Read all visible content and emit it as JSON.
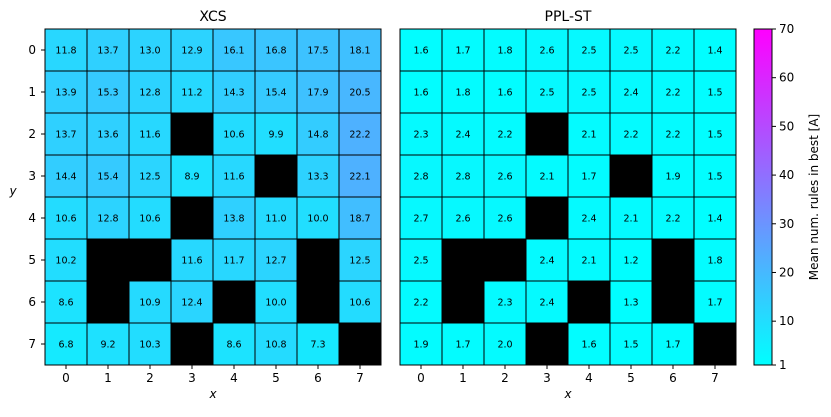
{
  "chart_data": [
    {
      "type": "heatmap",
      "title": "XCS",
      "xlabel": "x",
      "ylabel": "y",
      "x_ticks": [
        "0",
        "1",
        "2",
        "3",
        "4",
        "5",
        "6",
        "7"
      ],
      "y_ticks": [
        "0",
        "1",
        "2",
        "3",
        "4",
        "5",
        "6",
        "7"
      ],
      "blocked_color": "#000000",
      "values": [
        [
          11.8,
          13.7,
          13.0,
          12.9,
          16.1,
          16.8,
          17.5,
          18.1
        ],
        [
          13.9,
          15.3,
          12.8,
          11.2,
          14.3,
          15.4,
          17.9,
          20.5
        ],
        [
          13.7,
          13.6,
          11.6,
          null,
          10.6,
          9.9,
          14.8,
          22.2
        ],
        [
          14.4,
          15.4,
          12.5,
          8.9,
          11.6,
          null,
          13.3,
          22.1
        ],
        [
          10.6,
          12.8,
          10.6,
          null,
          13.8,
          11.0,
          10.0,
          18.7
        ],
        [
          10.2,
          null,
          null,
          11.6,
          11.7,
          12.7,
          null,
          12.5
        ],
        [
          8.6,
          null,
          10.9,
          12.4,
          null,
          10.0,
          null,
          10.6
        ],
        [
          6.8,
          9.2,
          10.3,
          null,
          8.6,
          10.8,
          7.3,
          null
        ]
      ],
      "labels": [
        [
          "11.8",
          "13.7",
          "13.0",
          "12.9",
          "16.1",
          "16.8",
          "17.5",
          "18.1"
        ],
        [
          "13.9",
          "15.3",
          "12.8",
          "11.2",
          "14.3",
          "15.4",
          "17.9",
          "20.5"
        ],
        [
          "13.7",
          "13.6",
          "11.6",
          "",
          "10.6",
          "9.9",
          "14.8",
          "22.2"
        ],
        [
          "14.4",
          "15.4",
          "12.5",
          "8.9",
          "11.6",
          "",
          "13.3",
          "22.1"
        ],
        [
          "10.6",
          "12.8",
          "10.6",
          "",
          "13.8",
          "11.0",
          "10.0",
          "18.7"
        ],
        [
          "10.2",
          "",
          "",
          "11.6",
          "11.7",
          "12.7",
          "",
          "12.5"
        ],
        [
          "8.6",
          "",
          "10.9",
          "12.4",
          "",
          "10.0",
          "",
          "10.6"
        ],
        [
          "6.8",
          "9.2",
          "10.3",
          "",
          "8.6",
          "10.8",
          "7.3",
          ""
        ]
      ]
    },
    {
      "type": "heatmap",
      "title": "PPL-ST",
      "xlabel": "x",
      "ylabel": "",
      "x_ticks": [
        "0",
        "1",
        "2",
        "3",
        "4",
        "5",
        "6",
        "7"
      ],
      "y_ticks": [],
      "blocked_color": "#000000",
      "values": [
        [
          1.6,
          1.7,
          1.8,
          2.6,
          2.5,
          2.5,
          2.2,
          1.4
        ],
        [
          1.6,
          1.8,
          1.6,
          2.5,
          2.5,
          2.4,
          2.2,
          1.5
        ],
        [
          2.3,
          2.4,
          2.2,
          null,
          2.1,
          2.2,
          2.2,
          1.5
        ],
        [
          2.8,
          2.8,
          2.6,
          2.1,
          1.7,
          null,
          1.9,
          1.5
        ],
        [
          2.7,
          2.6,
          2.6,
          null,
          2.4,
          2.1,
          2.2,
          1.4
        ],
        [
          2.5,
          null,
          null,
          2.4,
          2.1,
          1.2,
          null,
          1.8
        ],
        [
          2.2,
          null,
          2.3,
          2.4,
          null,
          1.3,
          null,
          1.7
        ],
        [
          1.9,
          1.7,
          2.0,
          null,
          1.6,
          1.5,
          1.7,
          null
        ]
      ],
      "labels": [
        [
          "1.6",
          "1.7",
          "1.8",
          "2.6",
          "2.5",
          "2.5",
          "2.2",
          "1.4"
        ],
        [
          "1.6",
          "1.8",
          "1.6",
          "2.5",
          "2.5",
          "2.4",
          "2.2",
          "1.5"
        ],
        [
          "2.3",
          "2.4",
          "2.2",
          "",
          "2.1",
          "2.2",
          "2.2",
          "1.5"
        ],
        [
          "2.8",
          "2.8",
          "2.6",
          "2.1",
          "1.7",
          "",
          "1.9",
          "1.5"
        ],
        [
          "2.7",
          "2.6",
          "2.6",
          "",
          "2.4",
          "2.1",
          "2.2",
          "1.4"
        ],
        [
          "2.5",
          "",
          "",
          "2.4",
          "2.1",
          "1.2",
          "",
          "1.8"
        ],
        [
          "2.2",
          "",
          "2.3",
          "2.4",
          "",
          "1.3",
          "",
          "1.7"
        ],
        [
          "1.9",
          "1.7",
          "2.0",
          "",
          "1.6",
          "1.5",
          "1.7",
          ""
        ]
      ]
    }
  ],
  "colorbar": {
    "label": "Mean num. rules in best [A]",
    "min": 1,
    "max": 70,
    "ticks": [
      "1",
      "10",
      "20",
      "30",
      "40",
      "50",
      "60",
      "70"
    ],
    "colormap": "cool",
    "color_low": "#00ffff",
    "color_high": "#ff00ff"
  }
}
